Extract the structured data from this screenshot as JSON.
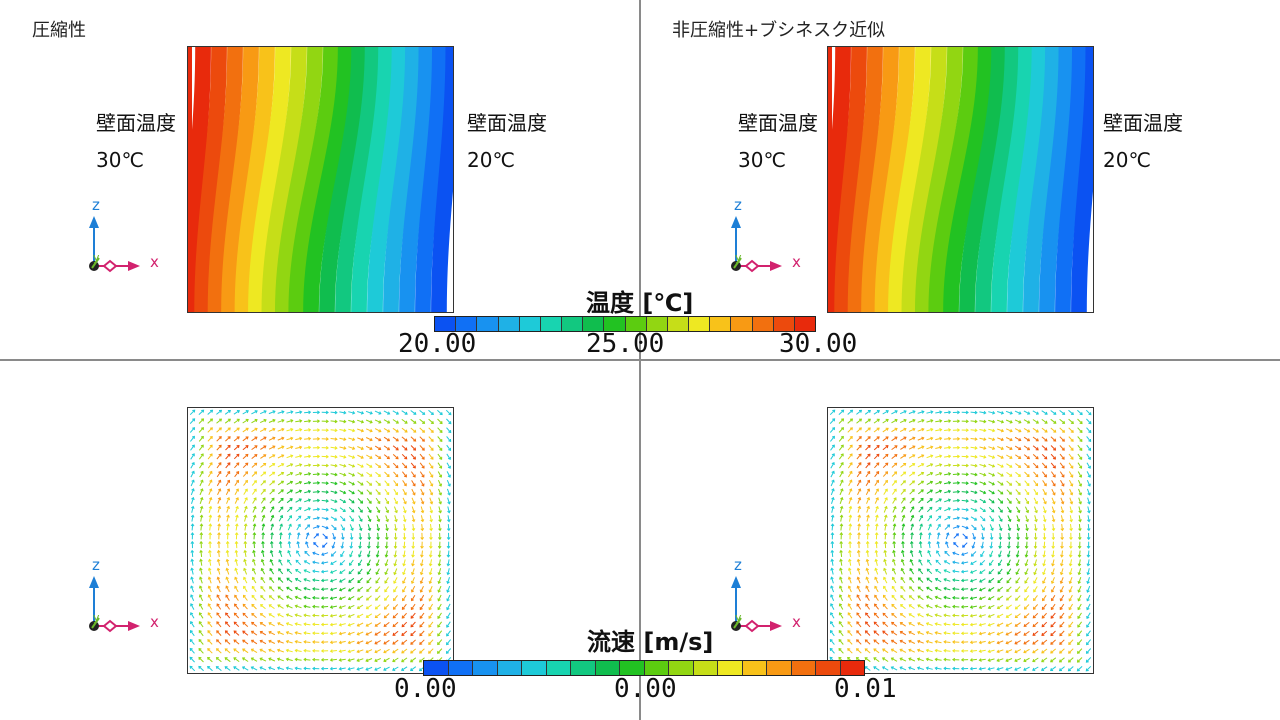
{
  "panels": {
    "top_left": {
      "title": "圧縮性",
      "left_wall": {
        "label": "壁面温度",
        "value": "30℃"
      },
      "right_wall": {
        "label": "壁面温度",
        "value": "20℃"
      }
    },
    "top_right": {
      "title": "非圧縮性+ブシネスク近似",
      "left_wall": {
        "label": "壁面温度",
        "value": "30℃"
      },
      "right_wall": {
        "label": "壁面温度",
        "value": "20℃"
      }
    }
  },
  "axes_triad": {
    "z": "z",
    "x": "x",
    "y": "y"
  },
  "temperature_legend": {
    "title": "温度 [℃]",
    "ticks": [
      "20.00",
      "25.00",
      "30.00"
    ],
    "colors": [
      "#0b52f2",
      "#1070f5",
      "#1892f0",
      "#1fb1e6",
      "#1ecad8",
      "#18d4b0",
      "#12c880",
      "#10bd4e",
      "#22c222",
      "#5ccc10",
      "#92d612",
      "#c6de18",
      "#eee822",
      "#f8c21a",
      "#f89a14",
      "#f2700f",
      "#ec4a0d",
      "#e82a0c"
    ]
  },
  "velocity_legend": {
    "title": "流速 [m/s]",
    "ticks": [
      "0.00",
      "0.00",
      "0.01"
    ],
    "colors": [
      "#0b52f2",
      "#1070f5",
      "#1892f0",
      "#1fb1e6",
      "#1ecad8",
      "#18d4b0",
      "#12c880",
      "#10bd4e",
      "#22c222",
      "#5ccc10",
      "#92d612",
      "#c6de18",
      "#eee822",
      "#f8c21a",
      "#f89a14",
      "#f2700f",
      "#ec4a0d",
      "#e82a0c"
    ]
  }
}
